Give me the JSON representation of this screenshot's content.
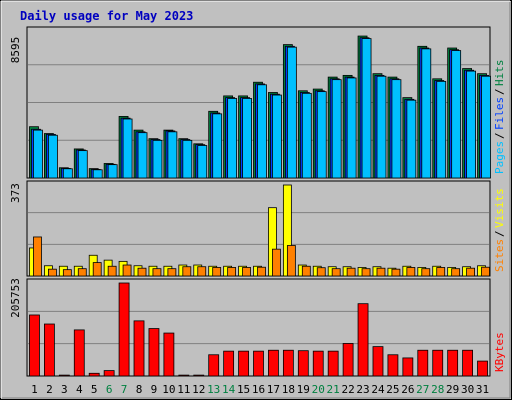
{
  "title": "Daily usage for May 2023",
  "colors": {
    "background": "#c0c0c0",
    "plot": "#c0c0c0",
    "grid": "#808080",
    "title": "#0000c0",
    "hits": "#008040",
    "files": "#0040ff",
    "pages": "#00c0ff",
    "visits": "#ffff00",
    "sites": "#ff8000",
    "kbytes": "#ff0000",
    "weekend_label": "#008040",
    "weekday_label": "#000000"
  },
  "chart_data": [
    {
      "type": "bar",
      "title": "Daily usage for May 2023",
      "panel": "hits-files-pages",
      "ymax_label": "8595",
      "ylim": [
        0,
        8595
      ],
      "grid": true,
      "legend_position": "right-vertical",
      "legend": [
        "Pages",
        "Files",
        "Hits"
      ],
      "categories": [
        "1",
        "2",
        "3",
        "4",
        "5",
        "6",
        "7",
        "8",
        "9",
        "10",
        "11",
        "12",
        "13",
        "14",
        "15",
        "16",
        "17",
        "18",
        "19",
        "20",
        "21",
        "22",
        "23",
        "24",
        "25",
        "26",
        "27",
        "28",
        "29",
        "30",
        "31"
      ],
      "weekend_days": [
        "6",
        "7",
        "13",
        "14",
        "20",
        "21",
        "27",
        "28"
      ],
      "series": [
        {
          "name": "Hits",
          "color_key": "hits",
          "values": [
            3000,
            2600,
            600,
            1700,
            550,
            850,
            3600,
            2800,
            2300,
            2800,
            2300,
            2000,
            3900,
            4800,
            4800,
            5600,
            5000,
            7800,
            5100,
            5200,
            5900,
            6000,
            8300,
            6100,
            5900,
            4700,
            7700,
            5800,
            7600,
            6400,
            6100
          ]
        },
        {
          "name": "Files",
          "color_key": "files",
          "values": [
            2850,
            2550,
            560,
            1640,
            500,
            800,
            3500,
            2700,
            2250,
            2750,
            2250,
            1950,
            3800,
            4700,
            4700,
            5500,
            4900,
            7700,
            5000,
            5100,
            5800,
            5900,
            8200,
            6000,
            5800,
            4600,
            7600,
            5700,
            7500,
            6300,
            6000
          ]
        },
        {
          "name": "Pages",
          "color_key": "pages",
          "values": [
            2800,
            2500,
            540,
            1600,
            480,
            780,
            3450,
            2650,
            2200,
            2700,
            2200,
            1900,
            3750,
            4650,
            4650,
            5450,
            4850,
            7650,
            4950,
            5050,
            5750,
            5850,
            8150,
            5950,
            5750,
            4550,
            7550,
            5650,
            7450,
            6250,
            5950
          ]
        }
      ]
    },
    {
      "type": "bar",
      "panel": "visits-sites",
      "ymax_label": "373",
      "ylim": [
        0,
        373
      ],
      "grid": true,
      "legend_position": "right-vertical",
      "legend": [
        "Sites",
        "Visits"
      ],
      "categories": [
        "1",
        "2",
        "3",
        "4",
        "5",
        "6",
        "7",
        "8",
        "9",
        "10",
        "11",
        "12",
        "13",
        "14",
        "15",
        "16",
        "17",
        "18",
        "19",
        "20",
        "21",
        "22",
        "23",
        "24",
        "25",
        "26",
        "27",
        "28",
        "29",
        "30",
        "31"
      ],
      "series": [
        {
          "name": "Visits",
          "color_key": "visits",
          "values": [
            115,
            42,
            40,
            40,
            85,
            65,
            60,
            42,
            40,
            40,
            45,
            45,
            40,
            40,
            40,
            40,
            280,
            373,
            45,
            40,
            38,
            38,
            35,
            38,
            32,
            40,
            35,
            40,
            35,
            38,
            42
          ]
        },
        {
          "name": "Sites",
          "color_key": "sites",
          "values": [
            160,
            28,
            26,
            30,
            55,
            40,
            45,
            32,
            30,
            30,
            38,
            38,
            35,
            35,
            35,
            36,
            110,
            125,
            40,
            34,
            30,
            32,
            30,
            32,
            28,
            35,
            30,
            35,
            30,
            32,
            36
          ]
        }
      ]
    },
    {
      "type": "bar",
      "panel": "kbytes",
      "ymax_label": "205753",
      "ylim": [
        0,
        205753
      ],
      "grid": true,
      "legend_position": "right-vertical",
      "legend": [
        "KBytes"
      ],
      "categories": [
        "1",
        "2",
        "3",
        "4",
        "5",
        "6",
        "7",
        "8",
        "9",
        "10",
        "11",
        "12",
        "13",
        "14",
        "15",
        "16",
        "17",
        "18",
        "19",
        "20",
        "21",
        "22",
        "23",
        "24",
        "25",
        "26",
        "27",
        "28",
        "29",
        "30",
        "31"
      ],
      "series": [
        {
          "name": "KBytes",
          "color_key": "kbytes",
          "values": [
            135000,
            115000,
            2000,
            102000,
            6000,
            12000,
            205753,
            122000,
            105000,
            95000,
            2000,
            2000,
            47000,
            55000,
            55000,
            55000,
            57000,
            57000,
            56000,
            55000,
            55000,
            72000,
            160000,
            65000,
            47000,
            40000,
            57000,
            57000,
            57000,
            57000,
            33000
          ]
        }
      ]
    }
  ],
  "x_axis": {
    "labels": [
      "1",
      "2",
      "3",
      "4",
      "5",
      "6",
      "7",
      "8",
      "9",
      "10",
      "11",
      "12",
      "13",
      "14",
      "15",
      "16",
      "17",
      "18",
      "19",
      "20",
      "21",
      "22",
      "23",
      "24",
      "25",
      "26",
      "27",
      "28",
      "29",
      "30",
      "31"
    ]
  }
}
